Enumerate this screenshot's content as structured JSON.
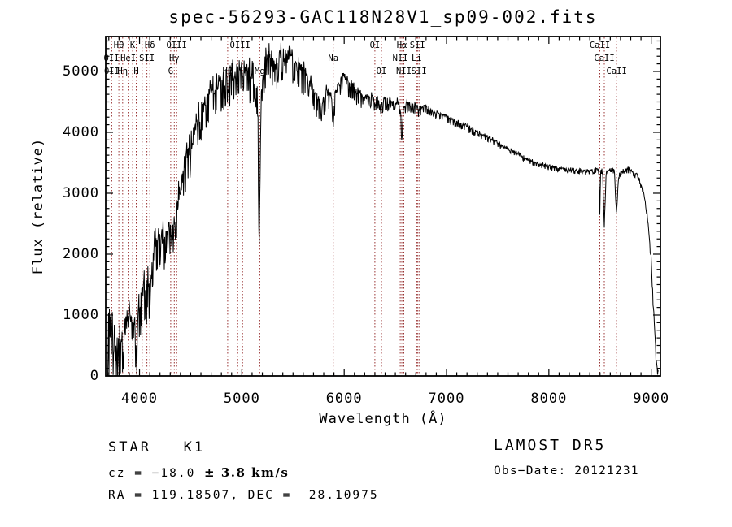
{
  "title": "spec-56293-GAC118N28V1_sp09-002.fits",
  "annotations": {
    "star_class": "STAR   K1",
    "cz_prefix": "cz = −18.0 ",
    "cz_error": "± 3.8 km/s",
    "ra_dec": "RA = 119.18507, DEC =  28.10975",
    "survey": "LAMOST DR5",
    "obs_date": "Obs−Date: 20121231"
  },
  "colors": {
    "trace": "#000000",
    "axis": "#000000",
    "spectral_line": "#993333",
    "text": "#000000",
    "background": "#ffffff"
  },
  "chart_data": {
    "type": "line",
    "title": "spec-56293-GAC118N28V1_sp09-002.fits",
    "xlabel": "Wavelength (Å)",
    "ylabel": "Flux (relative)",
    "grid": false,
    "legend": "none",
    "x_axis": {
      "range": [
        3670,
        9090
      ],
      "ticks": [
        4000,
        5000,
        6000,
        7000,
        8000,
        9000
      ],
      "minor_step": 100
    },
    "y_axis": {
      "range": [
        0,
        5573
      ],
      "ticks": [
        0,
        1000,
        2000,
        3000,
        4000,
        5000
      ],
      "minor_step": 125
    },
    "series_name": "flux (relative) vs wavelength (Å), noisy stellar spectrum",
    "continuum_anchors": [
      [
        3690,
        150
      ],
      [
        3695,
        1050
      ],
      [
        3700,
        300
      ],
      [
        3705,
        1200
      ],
      [
        3710,
        500
      ],
      [
        3715,
        900
      ],
      [
        3720,
        350
      ],
      [
        3727,
        550
      ],
      [
        3735,
        850
      ],
      [
        3745,
        400
      ],
      [
        3755,
        650
      ],
      [
        3765,
        250
      ],
      [
        3775,
        500
      ],
      [
        3785,
        350
      ],
      [
        3798,
        200
      ],
      [
        3810,
        550
      ],
      [
        3820,
        700
      ],
      [
        3835,
        450
      ],
      [
        3845,
        750
      ],
      [
        3855,
        550
      ],
      [
        3870,
        850
      ],
      [
        3880,
        700
      ],
      [
        3895,
        900
      ],
      [
        3910,
        800
      ],
      [
        3920,
        950
      ],
      [
        3933,
        400
      ],
      [
        3945,
        800
      ],
      [
        3955,
        650
      ],
      [
        3968,
        480
      ],
      [
        3980,
        800
      ],
      [
        4000,
        1100
      ],
      [
        4020,
        1250
      ],
      [
        4040,
        1500
      ],
      [
        4060,
        1350
      ],
      [
        4080,
        1500
      ],
      [
        4101,
        1150
      ],
      [
        4120,
        1700
      ],
      [
        4140,
        2000
      ],
      [
        4160,
        2200
      ],
      [
        4180,
        2250
      ],
      [
        4200,
        2350
      ],
      [
        4220,
        2300
      ],
      [
        4240,
        2250
      ],
      [
        4260,
        2350
      ],
      [
        4280,
        2400
      ],
      [
        4305,
        2300
      ],
      [
        4320,
        2550
      ],
      [
        4340,
        2450
      ],
      [
        4363,
        2750
      ],
      [
        4380,
        2900
      ],
      [
        4400,
        3000
      ],
      [
        4430,
        3300
      ],
      [
        4460,
        3550
      ],
      [
        4500,
        3750
      ],
      [
        4540,
        4000
      ],
      [
        4580,
        4250
      ],
      [
        4620,
        4400
      ],
      [
        4660,
        4550
      ],
      [
        4700,
        4650
      ],
      [
        4740,
        4700
      ],
      [
        4780,
        4800
      ],
      [
        4820,
        4850
      ],
      [
        4845,
        4800
      ],
      [
        4861,
        4550
      ],
      [
        4872,
        4800
      ],
      [
        4900,
        4900
      ],
      [
        4930,
        4950
      ],
      [
        4960,
        5000
      ],
      [
        5000,
        5050
      ],
      [
        5040,
        5000
      ],
      [
        5080,
        4950
      ],
      [
        5120,
        4900
      ],
      [
        5155,
        4700
      ],
      [
        5168,
        1900
      ],
      [
        5175,
        2600
      ],
      [
        5185,
        4500
      ],
      [
        5200,
        4900
      ],
      [
        5230,
        5150
      ],
      [
        5260,
        5250
      ],
      [
        5290,
        5150
      ],
      [
        5320,
        5050
      ],
      [
        5350,
        5150
      ],
      [
        5380,
        5250
      ],
      [
        5420,
        5150
      ],
      [
        5460,
        5250
      ],
      [
        5500,
        5150
      ],
      [
        5540,
        5050
      ],
      [
        5580,
        5000
      ],
      [
        5620,
        4950
      ],
      [
        5660,
        4800
      ],
      [
        5700,
        4700
      ],
      [
        5740,
        4550
      ],
      [
        5780,
        4400
      ],
      [
        5810,
        4550
      ],
      [
        5840,
        4650
      ],
      [
        5870,
        4600
      ],
      [
        5893,
        4050
      ],
      [
        5910,
        4600
      ],
      [
        5940,
        4750
      ],
      [
        5970,
        4850
      ],
      [
        6000,
        4850
      ],
      [
        6040,
        4800
      ],
      [
        6080,
        4750
      ],
      [
        6120,
        4650
      ],
      [
        6160,
        4600
      ],
      [
        6200,
        4550
      ],
      [
        6240,
        4600
      ],
      [
        6280,
        4550
      ],
      [
        6300,
        4450
      ],
      [
        6320,
        4550
      ],
      [
        6340,
        4500
      ],
      [
        6364,
        4450
      ],
      [
        6390,
        4520
      ],
      [
        6420,
        4480
      ],
      [
        6460,
        4520
      ],
      [
        6500,
        4500
      ],
      [
        6530,
        4480
      ],
      [
        6548,
        4350
      ],
      [
        6563,
        3950
      ],
      [
        6578,
        4350
      ],
      [
        6600,
        4450
      ],
      [
        6640,
        4470
      ],
      [
        6680,
        4440
      ],
      [
        6710,
        4400
      ],
      [
        6731,
        4350
      ],
      [
        6760,
        4420
      ],
      [
        6800,
        4400
      ],
      [
        6850,
        4350
      ],
      [
        6900,
        4320
      ],
      [
        6950,
        4280
      ],
      [
        7000,
        4250
      ],
      [
        7060,
        4200
      ],
      [
        7120,
        4150
      ],
      [
        7180,
        4120
      ],
      [
        7240,
        4050
      ],
      [
        7300,
        4000
      ],
      [
        7360,
        3950
      ],
      [
        7420,
        3900
      ],
      [
        7480,
        3850
      ],
      [
        7540,
        3780
      ],
      [
        7600,
        3720
      ],
      [
        7660,
        3680
      ],
      [
        7720,
        3620
      ],
      [
        7780,
        3560
      ],
      [
        7840,
        3520
      ],
      [
        7900,
        3480
      ],
      [
        7960,
        3460
      ],
      [
        8020,
        3440
      ],
      [
        8080,
        3420
      ],
      [
        8140,
        3400
      ],
      [
        8200,
        3390
      ],
      [
        8260,
        3380
      ],
      [
        8320,
        3370
      ],
      [
        8380,
        3360
      ],
      [
        8430,
        3380
      ],
      [
        8470,
        3400
      ],
      [
        8490,
        3350
      ],
      [
        8498,
        2700
      ],
      [
        8506,
        3350
      ],
      [
        8525,
        3380
      ],
      [
        8542,
        2450
      ],
      [
        8560,
        3350
      ],
      [
        8590,
        3380
      ],
      [
        8620,
        3400
      ],
      [
        8640,
        3380
      ],
      [
        8662,
        2650
      ],
      [
        8680,
        3300
      ],
      [
        8710,
        3350
      ],
      [
        8740,
        3380
      ],
      [
        8770,
        3400
      ],
      [
        8800,
        3380
      ],
      [
        8830,
        3340
      ],
      [
        8860,
        3300
      ],
      [
        8890,
        3200
      ],
      [
        8920,
        3050
      ],
      [
        8950,
        2800
      ],
      [
        8975,
        2400
      ],
      [
        9000,
        1900
      ],
      [
        9020,
        1200
      ],
      [
        9035,
        700
      ],
      [
        9045,
        350
      ],
      [
        9055,
        120
      ],
      [
        9070,
        60
      ]
    ],
    "noise_envelope": [
      [
        3690,
        380
      ],
      [
        3800,
        350
      ],
      [
        3900,
        330
      ],
      [
        4000,
        300
      ],
      [
        4100,
        280
      ],
      [
        4200,
        260
      ],
      [
        4300,
        260
      ],
      [
        4400,
        250
      ],
      [
        4500,
        240
      ],
      [
        4700,
        230
      ],
      [
        4900,
        240
      ],
      [
        5100,
        230
      ],
      [
        5300,
        200
      ],
      [
        5500,
        180
      ],
      [
        5700,
        170
      ],
      [
        5850,
        150
      ],
      [
        6000,
        110
      ],
      [
        6200,
        90
      ],
      [
        6350,
        80
      ],
      [
        6500,
        70
      ],
      [
        6600,
        80
      ],
      [
        6700,
        60
      ],
      [
        6900,
        50
      ],
      [
        7100,
        45
      ],
      [
        7300,
        40
      ],
      [
        7600,
        35
      ],
      [
        8000,
        32
      ],
      [
        8400,
        30
      ],
      [
        8700,
        30
      ],
      [
        8900,
        40
      ],
      [
        9000,
        60
      ],
      [
        9070,
        40
      ]
    ],
    "spectral_lines": [
      3726,
      3729,
      3798,
      3835,
      3889,
      3933,
      3968,
      4026,
      4072,
      4101,
      4305,
      4340,
      4363,
      4861,
      4959,
      5007,
      5175,
      5893,
      6300,
      6364,
      6548,
      6563,
      6583,
      6708,
      6716,
      6731,
      8498,
      8542,
      8662
    ],
    "line_labels": [
      {
        "text": "Hθ",
        "wl": 3798,
        "row": 1
      },
      {
        "text": "K",
        "wl": 3933,
        "row": 1
      },
      {
        "text": "Hδ",
        "wl": 4101,
        "row": 1
      },
      {
        "text": "OIII",
        "wl": 4363,
        "row": 1
      },
      {
        "text": "OIII",
        "wl": 4983,
        "row": 1
      },
      {
        "text": "OI",
        "wl": 6300,
        "row": 1
      },
      {
        "text": "Hα",
        "wl": 6563,
        "row": 1
      },
      {
        "text": "SII",
        "wl": 6716,
        "row": 1
      },
      {
        "text": "CaII",
        "wl": 8498,
        "row": 1
      },
      {
        "text": "OII",
        "wl": 3726,
        "row": 2
      },
      {
        "text": "HeI",
        "wl": 3889,
        "row": 2
      },
      {
        "text": "SII",
        "wl": 4072,
        "row": 2
      },
      {
        "text": "Hγ",
        "wl": 4340,
        "row": 2
      },
      {
        "text": "Na",
        "wl": 5893,
        "row": 2
      },
      {
        "text": "NII",
        "wl": 6548,
        "row": 2
      },
      {
        "text": "Li",
        "wl": 6708,
        "row": 2
      },
      {
        "text": "CaII",
        "wl": 8542,
        "row": 2
      },
      {
        "text": "OII",
        "wl": 3729,
        "row": 3
      },
      {
        "text": "Hη",
        "wl": 3835,
        "row": 3
      },
      {
        "text": "H",
        "wl": 3968,
        "row": 3
      },
      {
        "text": "G",
        "wl": 4305,
        "row": 3
      },
      {
        "text": "Hβ",
        "wl": 4861,
        "row": 3
      },
      {
        "text": "Mg",
        "wl": 5175,
        "row": 3
      },
      {
        "text": "OI",
        "wl": 6364,
        "row": 3
      },
      {
        "text": "NII",
        "wl": 6583,
        "row": 3
      },
      {
        "text": "SII",
        "wl": 6731,
        "row": 3
      },
      {
        "text": "CaII",
        "wl": 8662,
        "row": 3
      }
    ]
  }
}
